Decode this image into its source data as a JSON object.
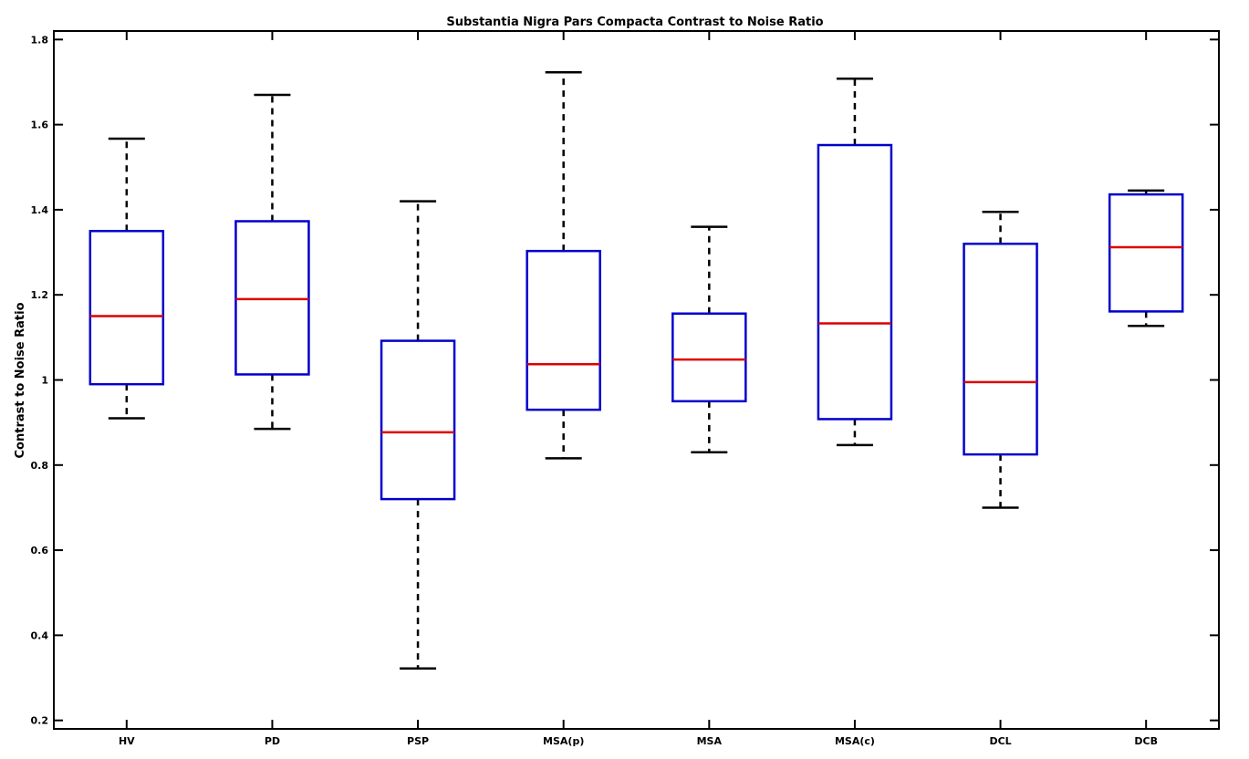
{
  "chart_data": {
    "type": "box",
    "title": "Substantia Nigra Pars Compacta Contrast to Noise Ratio",
    "xlabel": "",
    "ylabel": "Contrast to Noise Ratio",
    "ylim": [
      0.18,
      1.82
    ],
    "yticks": [
      0.2,
      0.4,
      0.6,
      0.8,
      1,
      1.2,
      1.4,
      1.6,
      1.8
    ],
    "ytick_labels": [
      "0.2",
      "0.4",
      "0.6",
      "0.8",
      "1",
      "1.2",
      "1.4",
      "1.6",
      "1.8"
    ],
    "categories": [
      "HV",
      "PD",
      "PSP",
      "MSA(p)",
      "MSA",
      "MSA(c)",
      "DCL",
      "DCB"
    ],
    "boxes": [
      {
        "label": "HV",
        "whisker_low": 0.91,
        "q1": 0.99,
        "median": 1.15,
        "q3": 1.35,
        "whisker_high": 1.567
      },
      {
        "label": "PD",
        "whisker_low": 0.885,
        "q1": 1.013,
        "median": 1.19,
        "q3": 1.373,
        "whisker_high": 1.67
      },
      {
        "label": "PSP",
        "whisker_low": 0.322,
        "q1": 0.72,
        "median": 0.877,
        "q3": 1.092,
        "whisker_high": 1.42
      },
      {
        "label": "MSA(p)",
        "whisker_low": 0.816,
        "q1": 0.93,
        "median": 1.037,
        "q3": 1.303,
        "whisker_high": 1.723
      },
      {
        "label": "MSA",
        "whisker_low": 0.83,
        "q1": 0.95,
        "median": 1.048,
        "q3": 1.156,
        "whisker_high": 1.36
      },
      {
        "label": "MSA(c)",
        "whisker_low": 0.847,
        "q1": 0.908,
        "median": 1.133,
        "q3": 1.552,
        "whisker_high": 1.708
      },
      {
        "label": "DCL",
        "whisker_low": 0.7,
        "q1": 0.825,
        "median": 0.995,
        "q3": 1.32,
        "whisker_high": 1.395
      },
      {
        "label": "DCB",
        "whisker_low": 1.127,
        "q1": 1.161,
        "median": 1.312,
        "q3": 1.436,
        "whisker_high": 1.445
      }
    ],
    "grid": false,
    "colors": {
      "box": "#0000cc",
      "median": "#dd0000",
      "whisker": "#000000",
      "axis": "#000000"
    }
  }
}
